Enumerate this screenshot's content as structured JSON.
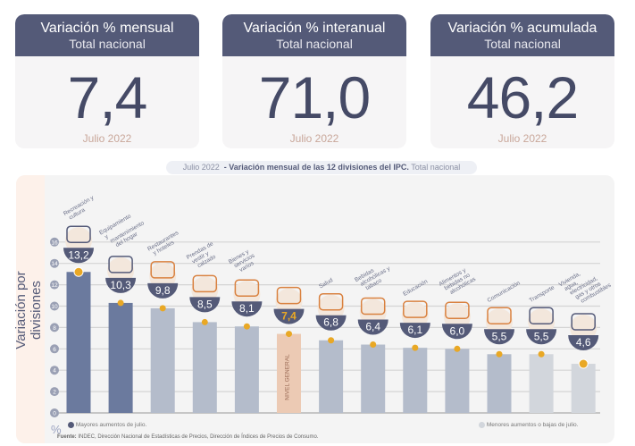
{
  "cards": [
    {
      "title": "Variación % mensual",
      "subtitle": "Total nacional",
      "value": "7,4",
      "period": "Julio 2022"
    },
    {
      "title": "Variación % interanual",
      "subtitle": "Total nacional",
      "value": "71,0",
      "period": "Julio 2022"
    },
    {
      "title": "Variación % acumulada",
      "subtitle": "Total nacional",
      "value": "46,2",
      "period": "Julio 2022"
    }
  ],
  "chart_data": {
    "type": "bar",
    "title_period": "Julio 2022",
    "title": "- Variación mensual de las 12 divisiones del IPC.",
    "title_suffix": "Total nacional",
    "ylabel": "Variación por divisiones",
    "yunit": "%",
    "ylim": [
      0,
      16
    ],
    "yticks": [
      0,
      2,
      4,
      6,
      8,
      10,
      12,
      14,
      16
    ],
    "categories": [
      "Recreación y cultura",
      "Equipamiento y mantenimiento del hogar",
      "Restaurantes y hoteles",
      "Prendas de vestir y calzado",
      "Bienes y servicios varios",
      "NIVEL GENERAL",
      "Salud",
      "Bebidas alcohólicas y tabaco",
      "Educación",
      "Alimentos y bebidas no alcohólicas",
      "Comunicación",
      "Transporte",
      "Vivienda, agua, electricidad, gas y otros combustibles"
    ],
    "values": [
      13.2,
      10.3,
      9.8,
      8.5,
      8.1,
      7.4,
      6.8,
      6.4,
      6.1,
      6.0,
      5.5,
      5.5,
      4.6
    ],
    "labels": [
      "13,2",
      "10,3",
      "9,8",
      "8,5",
      "8,1",
      "7,4",
      "6,8",
      "6,4",
      "6,1",
      "6,0",
      "5,5",
      "5,5",
      "4,6"
    ],
    "groups": [
      "high",
      "high",
      "mid",
      "mid",
      "mid",
      "general",
      "mid",
      "mid",
      "mid",
      "mid",
      "mid",
      "low",
      "low"
    ],
    "legend": {
      "high": "Mayores aumentos de julio.",
      "low": "Menores aumentos o bajas de julio."
    },
    "colors": {
      "high": "#6b7a9e",
      "mid": "#b4bccb",
      "general": "#eccab4",
      "low": "#d2d6dc",
      "badge": "#545a78",
      "dot": "#e9a825"
    }
  },
  "source_label": "Fuente:",
  "source": "INDEC, Dirección Nacional de Estadísticas de Precios, Dirección de Índices de Precios de Consumo."
}
